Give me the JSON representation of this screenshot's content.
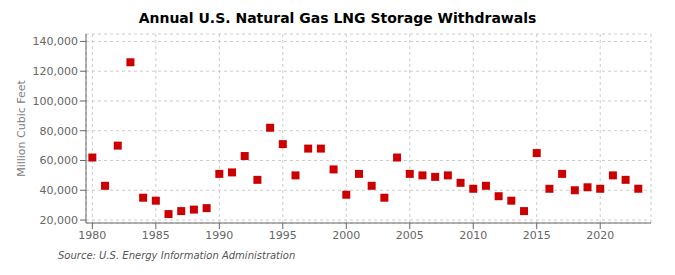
{
  "chart_data": {
    "type": "scatter",
    "title": "Annual U.S. Natural Gas LNG Storage Withdrawals",
    "ylabel": "Million Cubic Feet",
    "annotations": [
      "Source: U.S. Energy Information Administration"
    ],
    "x": [
      1980,
      1981,
      1982,
      1983,
      1984,
      1985,
      1986,
      1987,
      1988,
      1989,
      1990,
      1991,
      1992,
      1993,
      1994,
      1995,
      1996,
      1997,
      1998,
      1999,
      2000,
      2001,
      2002,
      2003,
      2004,
      2005,
      2006,
      2007,
      2008,
      2009,
      2010,
      2011,
      2012,
      2013,
      2014,
      2015,
      2016,
      2017,
      2018,
      2019,
      2020,
      2021,
      2022,
      2023
    ],
    "values": [
      62000,
      43000,
      70000,
      126000,
      35000,
      33000,
      24000,
      26000,
      27000,
      28000,
      51000,
      52000,
      63000,
      47000,
      82000,
      71000,
      50000,
      68000,
      68000,
      54000,
      37000,
      51000,
      43000,
      35000,
      62000,
      51000,
      50000,
      49000,
      50000,
      45000,
      41000,
      43000,
      36000,
      33000,
      26000,
      65000,
      41000,
      51000,
      40000,
      42000,
      41000,
      50000,
      47000,
      41000
    ],
    "color": "#cc0000",
    "marker": "square",
    "xlim": [
      1979.5,
      2024
    ],
    "ylim": [
      18000,
      145000
    ],
    "xticks": [
      1980,
      1985,
      1990,
      1995,
      2000,
      2005,
      2010,
      2015,
      2020
    ],
    "yticks": [
      {
        "value": 20000,
        "label": "20,000"
      },
      {
        "value": 40000,
        "label": "40,000"
      },
      {
        "value": 60000,
        "label": "60,000"
      },
      {
        "value": 80000,
        "label": "80,000"
      },
      {
        "value": 100000,
        "label": "100,000"
      },
      {
        "value": 120000,
        "label": "120,000"
      },
      {
        "value": 140000,
        "label": "140,000"
      }
    ],
    "grid": true
  }
}
